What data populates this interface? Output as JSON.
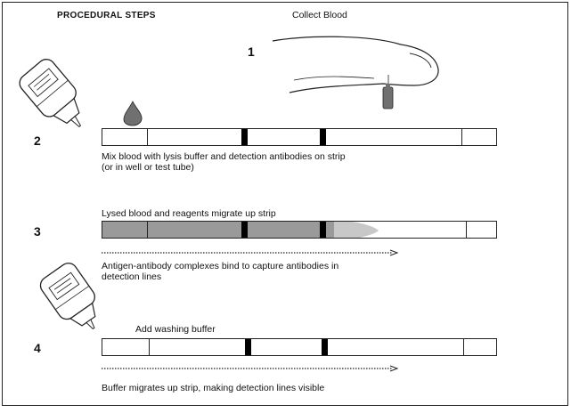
{
  "header": {
    "title": "PROCEDURAL STEPS",
    "collect": "Collect Blood"
  },
  "steps": [
    {
      "number": "1"
    },
    {
      "number": "2",
      "caption_line1": "Mix blood with lysis buffer and detection antibodies on strip",
      "caption_line2": "(or in well or test tube)"
    },
    {
      "number": "3",
      "caption_top": "Lysed blood and reagents migrate up strip",
      "caption_line1": "Antigen-antibody complexes bind to capture antibodies in",
      "caption_line2": "detection lines"
    },
    {
      "number": "4",
      "caption_top": "Add washing buffer",
      "caption_line1": "Buffer migrates up strip, making detection lines visible"
    }
  ],
  "colors": {
    "line": "#222222",
    "band": "#000000",
    "migration_fill": "#9a9a9a",
    "drop": "#707070"
  }
}
